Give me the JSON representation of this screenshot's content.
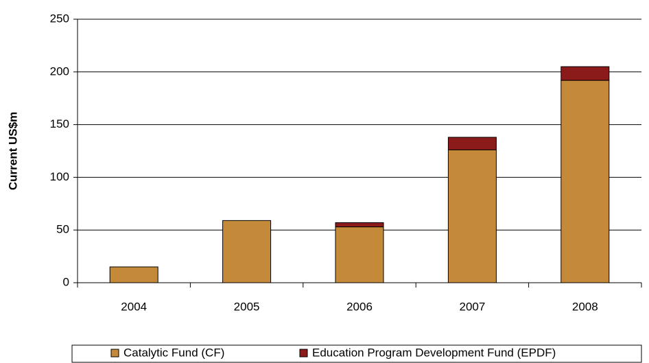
{
  "chart_data": {
    "type": "stacked_bar",
    "y_label": "Current US$m",
    "categories": [
      "2004",
      "2005",
      "2006",
      "2007",
      "2008"
    ],
    "series": [
      {
        "name": "Catalytic Fund (CF)",
        "color": "#c48a3a",
        "values": [
          15,
          59,
          53,
          126,
          192
        ]
      },
      {
        "name": "Education Program Development Fund (EPDF)",
        "color": "#8b1a1a",
        "values": [
          0,
          0,
          4,
          12,
          13
        ]
      }
    ],
    "ylim": [
      0,
      250
    ],
    "yticks": [
      0,
      50,
      100,
      150,
      200,
      250
    ],
    "grid": true
  }
}
